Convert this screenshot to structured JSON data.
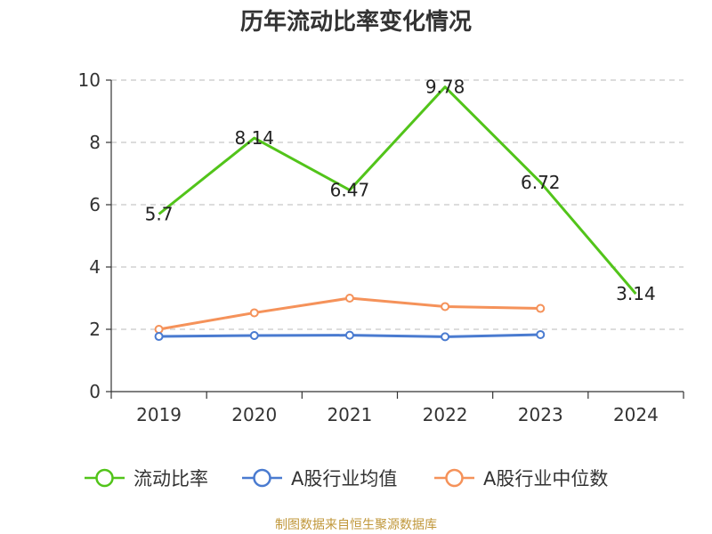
{
  "source_note": "制图数据来自恒生聚源数据库",
  "colors": {
    "grid": "#c8c8c8",
    "axis": "#333333",
    "source": "#c0973a"
  },
  "chart_data": {
    "type": "line",
    "title": "历年流动比率变化情况",
    "xlabel": "",
    "ylabel": "",
    "categories": [
      "2019",
      "2020",
      "2021",
      "2022",
      "2023",
      "2024"
    ],
    "ylim": [
      0,
      10
    ],
    "yticks": [
      0,
      2,
      4,
      6,
      8,
      10
    ],
    "grid": true,
    "legend_position": "bottom-center",
    "series": [
      {
        "name": "流动比率",
        "color": "#52c41a",
        "values": [
          5.7,
          8.14,
          6.47,
          9.78,
          6.72,
          3.14
        ],
        "labels": [
          "5.7",
          "8.14",
          "6.47",
          "9.78",
          "6.72",
          "3.14"
        ],
        "show_labels": true,
        "show_markers": false
      },
      {
        "name": "A股行业均值",
        "color": "#4a7bd0",
        "values": [
          1.77,
          1.8,
          1.81,
          1.76,
          1.83,
          null
        ],
        "show_labels": false,
        "show_markers": true
      },
      {
        "name": "A股行业中位数",
        "color": "#f5925a",
        "values": [
          2.0,
          2.53,
          3.0,
          2.73,
          2.67,
          null
        ],
        "show_labels": false,
        "show_markers": true
      }
    ]
  }
}
